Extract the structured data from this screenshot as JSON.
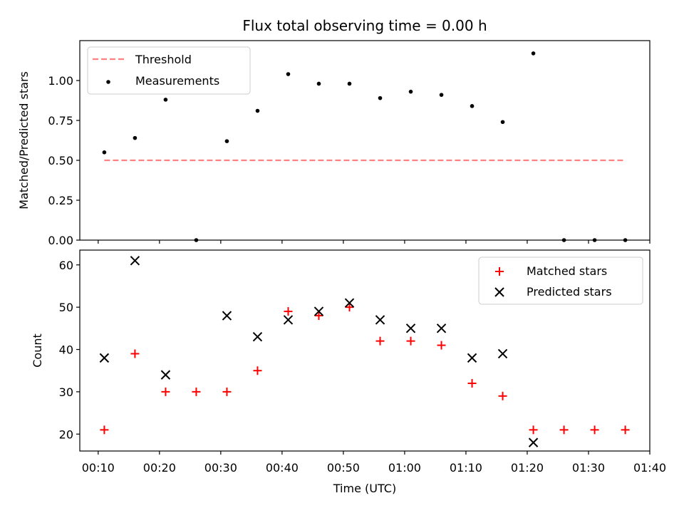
{
  "title": "Flux total observing time = 0.00 h",
  "xlabel": "Time (UTC)",
  "x_ticks": [
    "00:10",
    "00:20",
    "00:30",
    "00:40",
    "00:50",
    "01:00",
    "01:10",
    "01:20",
    "01:30",
    "01:40"
  ],
  "chart_data": [
    {
      "type": "scatter",
      "panel": "top",
      "ylabel": "Matched/Predicted stars",
      "xlim": [
        "00:07",
        "01:40"
      ],
      "ylim": [
        0,
        1.25
      ],
      "y_ticks": [
        "0.00",
        "0.25",
        "0.50",
        "0.75",
        "1.00"
      ],
      "legend_position": "upper-left",
      "series": [
        {
          "name": "Threshold",
          "kind": "dashed-line",
          "color": "#ff8080",
          "x": [
            "00:11",
            "01:36"
          ],
          "y": [
            0.5,
            0.5
          ]
        },
        {
          "name": "Measurements",
          "kind": "dot",
          "color": "#000000",
          "x": [
            "00:11",
            "00:16",
            "00:21",
            "00:26",
            "00:31",
            "00:36",
            "00:41",
            "00:46",
            "00:51",
            "00:56",
            "01:01",
            "01:06",
            "01:11",
            "01:16",
            "01:21",
            "01:26",
            "01:31",
            "01:36"
          ],
          "y": [
            0.55,
            0.64,
            0.88,
            0.0,
            0.62,
            0.81,
            1.04,
            0.98,
            0.98,
            0.89,
            0.93,
            0.91,
            0.84,
            0.74,
            1.17,
            0.0,
            0.0,
            0.0
          ]
        }
      ]
    },
    {
      "type": "scatter",
      "panel": "bottom",
      "ylabel": "Count",
      "xlim": [
        "00:07",
        "01:40"
      ],
      "ylim": [
        16,
        63.5
      ],
      "y_ticks": [
        "20",
        "30",
        "40",
        "50",
        "60"
      ],
      "legend_position": "upper-right",
      "series": [
        {
          "name": "Matched stars",
          "kind": "plus",
          "color": "#ff0000",
          "x": [
            "00:11",
            "00:16",
            "00:21",
            "00:26",
            "00:31",
            "00:36",
            "00:41",
            "00:46",
            "00:51",
            "00:56",
            "01:01",
            "01:06",
            "01:11",
            "01:16",
            "01:21",
            "01:26",
            "01:31",
            "01:36"
          ],
          "y": [
            21,
            39,
            30,
            30,
            30,
            35,
            49,
            48,
            50,
            42,
            42,
            41,
            32,
            29,
            21,
            21,
            21,
            21
          ]
        },
        {
          "name": "Predicted stars",
          "kind": "x",
          "color": "#000000",
          "x": [
            "00:11",
            "00:16",
            "00:21",
            "00:31",
            "00:36",
            "00:41",
            "00:46",
            "00:51",
            "00:56",
            "01:01",
            "01:06",
            "01:11",
            "01:16",
            "01:21"
          ],
          "y": [
            38,
            61,
            34,
            48,
            43,
            47,
            49,
            51,
            47,
            45,
            45,
            38,
            39,
            18
          ]
        }
      ]
    }
  ]
}
